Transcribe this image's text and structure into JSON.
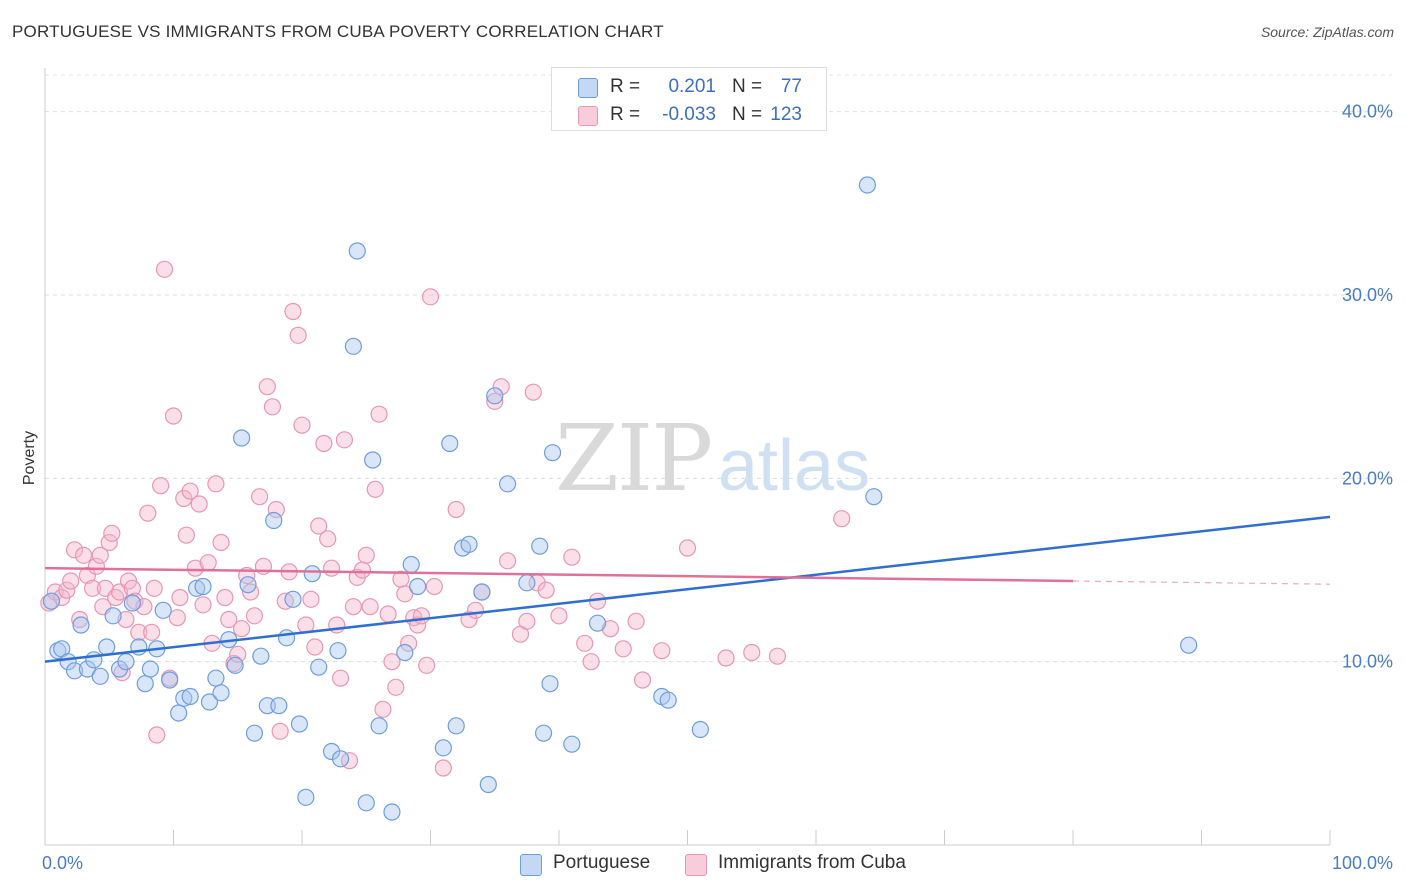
{
  "title": "PORTUGUESE VS IMMIGRANTS FROM CUBA POVERTY CORRELATION CHART",
  "source": "Source: ZipAtlas.com",
  "watermark": {
    "zip": "ZIP",
    "atlas": "atlas"
  },
  "legend": {
    "rows": [
      {
        "r_label": "R =",
        "r_value": "0.201",
        "n_label": "N =",
        "n_value": "77"
      },
      {
        "r_label": "R =",
        "r_value": "-0.033",
        "n_label": "N =",
        "n_value": "123"
      }
    ]
  },
  "bottom_legend": [
    "Portuguese",
    "Immigrants from Cuba"
  ],
  "colors": {
    "blue_fill": "#aac8f0",
    "blue_stroke": "#6d9de0",
    "blue_line": "#2f6fd0",
    "pink_fill": "#f5b5cb",
    "pink_stroke": "#e896b2",
    "pink_line": "#e07099",
    "grid": "#dddddd",
    "tick_text": "#4a7cc9"
  },
  "chart_data": {
    "type": "scatter",
    "title": "PORTUGUESE VS IMMIGRANTS FROM CUBA POVERTY CORRELATION CHART",
    "xlabel": "",
    "ylabel": "Poverty",
    "xlim": [
      0,
      100
    ],
    "ylim": [
      0,
      42
    ],
    "x_tick_labels": [
      "0.0%",
      "100.0%"
    ],
    "y_ticks": [
      10,
      20,
      30,
      40
    ],
    "y_tick_labels": [
      "10.0%",
      "20.0%",
      "30.0%",
      "40.0%"
    ],
    "grid": "horizontal dashed",
    "legend_position": "top-center",
    "series": [
      {
        "name": "Portuguese",
        "color": "#6d9de0",
        "r": 0.201,
        "n": 77,
        "trend": {
          "x": [
            0,
            100
          ],
          "y": [
            10.0,
            17.9
          ]
        },
        "points": [
          [
            0.5,
            13.3
          ],
          [
            1.0,
            10.6
          ],
          [
            1.3,
            10.7
          ],
          [
            1.8,
            10.0
          ],
          [
            2.3,
            9.5
          ],
          [
            2.8,
            12.0
          ],
          [
            3.3,
            9.6
          ],
          [
            3.8,
            10.1
          ],
          [
            4.3,
            9.2
          ],
          [
            4.8,
            10.8
          ],
          [
            5.3,
            12.5
          ],
          [
            5.8,
            9.6
          ],
          [
            6.3,
            10.0
          ],
          [
            6.8,
            13.2
          ],
          [
            7.3,
            10.8
          ],
          [
            7.8,
            8.8
          ],
          [
            8.2,
            9.6
          ],
          [
            8.7,
            10.7
          ],
          [
            9.2,
            12.8
          ],
          [
            9.7,
            9.0
          ],
          [
            10.4,
            7.2
          ],
          [
            10.8,
            8.0
          ],
          [
            11.3,
            8.1
          ],
          [
            11.8,
            14.0
          ],
          [
            12.3,
            14.1
          ],
          [
            12.8,
            7.8
          ],
          [
            13.3,
            9.1
          ],
          [
            13.7,
            8.3
          ],
          [
            14.3,
            11.2
          ],
          [
            14.8,
            9.8
          ],
          [
            15.3,
            22.2
          ],
          [
            15.8,
            14.2
          ],
          [
            16.3,
            6.1
          ],
          [
            16.8,
            10.3
          ],
          [
            17.3,
            7.6
          ],
          [
            17.8,
            17.7
          ],
          [
            18.2,
            7.6
          ],
          [
            18.8,
            11.3
          ],
          [
            19.3,
            13.4
          ],
          [
            19.8,
            6.6
          ],
          [
            20.3,
            2.6
          ],
          [
            20.8,
            14.8
          ],
          [
            21.3,
            9.7
          ],
          [
            22.3,
            5.1
          ],
          [
            22.8,
            10.6
          ],
          [
            23.0,
            4.7
          ],
          [
            24.0,
            27.2
          ],
          [
            24.3,
            32.4
          ],
          [
            25.0,
            2.3
          ],
          [
            25.5,
            21.0
          ],
          [
            26.0,
            6.5
          ],
          [
            27.0,
            1.8
          ],
          [
            28.0,
            10.5
          ],
          [
            28.5,
            15.3
          ],
          [
            29.0,
            14.1
          ],
          [
            31.0,
            5.3
          ],
          [
            31.5,
            21.9
          ],
          [
            32.0,
            6.5
          ],
          [
            32.5,
            16.2
          ],
          [
            33.0,
            16.4
          ],
          [
            34.0,
            13.8
          ],
          [
            34.5,
            3.3
          ],
          [
            35.0,
            24.5
          ],
          [
            36.0,
            19.7
          ],
          [
            37.5,
            14.3
          ],
          [
            38.5,
            16.3
          ],
          [
            38.8,
            6.1
          ],
          [
            39.3,
            8.8
          ],
          [
            39.5,
            21.4
          ],
          [
            41.0,
            5.5
          ],
          [
            43.0,
            12.1
          ],
          [
            48.0,
            8.1
          ],
          [
            48.5,
            7.9
          ],
          [
            51.0,
            6.3
          ],
          [
            64.0,
            36.0
          ],
          [
            64.5,
            19.0
          ],
          [
            89.0,
            10.9
          ]
        ]
      },
      {
        "name": "Immigrants from Cuba",
        "color": "#e896b2",
        "r": -0.033,
        "n": 123,
        "trend": {
          "x": [
            0,
            80
          ],
          "y": [
            15.1,
            14.4
          ]
        },
        "points": [
          [
            0.3,
            13.2
          ],
          [
            0.8,
            13.8
          ],
          [
            1.3,
            13.5
          ],
          [
            1.7,
            13.9
          ],
          [
            2.0,
            14.4
          ],
          [
            2.3,
            16.1
          ],
          [
            2.7,
            12.3
          ],
          [
            3.0,
            15.8
          ],
          [
            3.3,
            14.7
          ],
          [
            3.7,
            14.0
          ],
          [
            4.0,
            15.2
          ],
          [
            4.3,
            15.8
          ],
          [
            4.5,
            13.0
          ],
          [
            4.7,
            14.0
          ],
          [
            5.0,
            16.5
          ],
          [
            5.2,
            17.0
          ],
          [
            5.5,
            13.5
          ],
          [
            5.8,
            13.8
          ],
          [
            6.0,
            9.4
          ],
          [
            6.3,
            12.3
          ],
          [
            6.5,
            14.4
          ],
          [
            6.8,
            14.0
          ],
          [
            7.0,
            13.3
          ],
          [
            7.3,
            11.6
          ],
          [
            7.7,
            13.0
          ],
          [
            8.0,
            18.1
          ],
          [
            8.3,
            11.6
          ],
          [
            8.5,
            14.0
          ],
          [
            8.7,
            6.0
          ],
          [
            9.0,
            19.6
          ],
          [
            9.3,
            31.4
          ],
          [
            9.7,
            9.1
          ],
          [
            10.0,
            23.4
          ],
          [
            10.3,
            12.4
          ],
          [
            10.5,
            13.5
          ],
          [
            10.8,
            18.9
          ],
          [
            11.0,
            16.9
          ],
          [
            11.3,
            19.3
          ],
          [
            11.7,
            15.1
          ],
          [
            12.0,
            18.6
          ],
          [
            12.3,
            13.1
          ],
          [
            12.7,
            15.4
          ],
          [
            13.0,
            11.0
          ],
          [
            13.3,
            19.7
          ],
          [
            13.7,
            16.5
          ],
          [
            14.0,
            13.5
          ],
          [
            14.3,
            12.3
          ],
          [
            14.7,
            9.9
          ],
          [
            15.0,
            10.4
          ],
          [
            15.3,
            11.8
          ],
          [
            15.7,
            14.7
          ],
          [
            16.0,
            13.8
          ],
          [
            16.3,
            12.5
          ],
          [
            16.7,
            19.0
          ],
          [
            17.0,
            15.2
          ],
          [
            17.3,
            25.0
          ],
          [
            17.7,
            23.9
          ],
          [
            18.0,
            18.3
          ],
          [
            18.3,
            6.2
          ],
          [
            18.7,
            13.3
          ],
          [
            19.0,
            14.9
          ],
          [
            19.3,
            29.1
          ],
          [
            19.7,
            27.8
          ],
          [
            20.0,
            22.9
          ],
          [
            20.3,
            12.0
          ],
          [
            20.7,
            13.4
          ],
          [
            21.0,
            10.8
          ],
          [
            21.3,
            17.4
          ],
          [
            21.7,
            21.9
          ],
          [
            22.0,
            16.7
          ],
          [
            22.3,
            15.1
          ],
          [
            22.7,
            12.0
          ],
          [
            23.0,
            9.1
          ],
          [
            23.3,
            22.1
          ],
          [
            23.7,
            4.6
          ],
          [
            24.0,
            13.0
          ],
          [
            24.3,
            14.6
          ],
          [
            24.7,
            15.0
          ],
          [
            25.0,
            15.8
          ],
          [
            25.3,
            13.0
          ],
          [
            25.7,
            19.4
          ],
          [
            26.0,
            23.5
          ],
          [
            26.3,
            7.4
          ],
          [
            26.7,
            12.6
          ],
          [
            27.0,
            10.0
          ],
          [
            27.3,
            8.6
          ],
          [
            27.7,
            14.5
          ],
          [
            28.0,
            13.7
          ],
          [
            28.3,
            11.0
          ],
          [
            28.7,
            12.4
          ],
          [
            29.0,
            12.0
          ],
          [
            29.3,
            12.5
          ],
          [
            29.7,
            9.8
          ],
          [
            30.0,
            29.9
          ],
          [
            30.3,
            14.1
          ],
          [
            31.0,
            4.2
          ],
          [
            32.0,
            18.3
          ],
          [
            33.0,
            12.3
          ],
          [
            33.5,
            12.8
          ],
          [
            34.0,
            13.8
          ],
          [
            35.0,
            24.2
          ],
          [
            35.5,
            25.0
          ],
          [
            36.0,
            15.5
          ],
          [
            37.0,
            11.5
          ],
          [
            37.5,
            12.2
          ],
          [
            38.0,
            24.7
          ],
          [
            38.3,
            14.3
          ],
          [
            39.0,
            13.9
          ],
          [
            40.0,
            12.5
          ],
          [
            41.0,
            15.7
          ],
          [
            42.0,
            11.0
          ],
          [
            42.5,
            10.0
          ],
          [
            43.0,
            13.3
          ],
          [
            44.0,
            11.8
          ],
          [
            45.0,
            10.7
          ],
          [
            46.0,
            12.2
          ],
          [
            46.5,
            9.0
          ],
          [
            48.0,
            10.6
          ],
          [
            50.0,
            16.2
          ],
          [
            53.0,
            10.2
          ],
          [
            55.0,
            10.5
          ],
          [
            57.0,
            10.3
          ],
          [
            62.0,
            17.8
          ]
        ]
      }
    ]
  }
}
